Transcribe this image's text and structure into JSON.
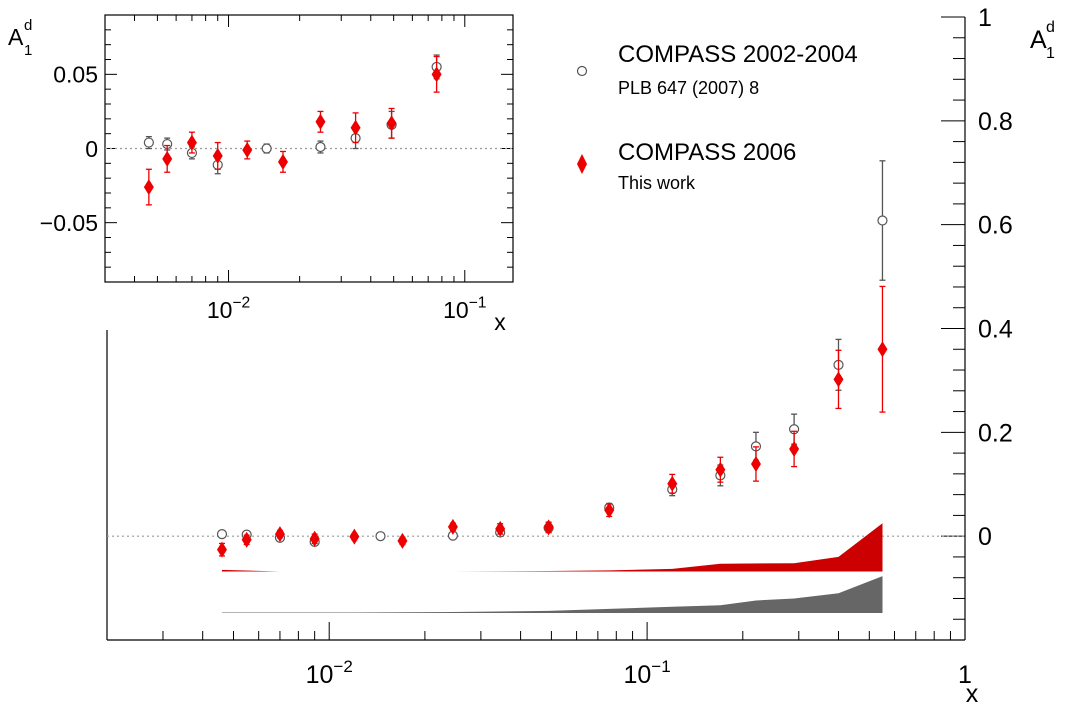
{
  "chart_data": [
    {
      "type": "scatter",
      "panel": "main",
      "x_scale": "log",
      "xlim": [
        0.002,
        1
      ],
      "ylim": [
        -0.2,
        1.0
      ],
      "grid": false,
      "xlabel": "x",
      "ylabel_main": "A",
      "ylabel_sub": "1",
      "ylabel_sup": "d",
      "x_ticks": [
        {
          "value": 0.01,
          "base": "10",
          "exp": "−2"
        },
        {
          "value": 0.1,
          "base": "10",
          "exp": "−1"
        },
        {
          "value": 1,
          "base": "",
          "exp": "1"
        }
      ],
      "y_ticks": [
        {
          "value": 0,
          "label": "0"
        },
        {
          "value": 0.2,
          "label": "0.2"
        },
        {
          "value": 0.4,
          "label": "0.4"
        },
        {
          "value": 0.6,
          "label": "0.6"
        },
        {
          "value": 0.8,
          "label": "0.8"
        },
        {
          "value": 1.0,
          "label": "1"
        }
      ],
      "reference_line_y": 0,
      "series": [
        {
          "name": "COMPASS 2002-2004",
          "color": "#555555",
          "marker": "open-circle",
          "points": [
            {
              "x": 0.0046,
              "y": 0.004,
              "err": 0.004
            },
            {
              "x": 0.0055,
              "y": 0.003,
              "err": 0.004
            },
            {
              "x": 0.007,
              "y": -0.003,
              "err": 0.004
            },
            {
              "x": 0.009,
              "y": -0.011,
              "err": 0.006
            },
            {
              "x": 0.0145,
              "y": 0.0,
              "err": 0.003
            },
            {
              "x": 0.0245,
              "y": 0.001,
              "err": 0.004
            },
            {
              "x": 0.0345,
              "y": 0.007,
              "err": 0.007
            },
            {
              "x": 0.049,
              "y": 0.016,
              "err": 0.009
            },
            {
              "x": 0.076,
              "y": 0.055,
              "err": 0.008
            },
            {
              "x": 0.12,
              "y": 0.09,
              "err": 0.012
            },
            {
              "x": 0.17,
              "y": 0.117,
              "err": 0.02
            },
            {
              "x": 0.22,
              "y": 0.173,
              "err": 0.027
            },
            {
              "x": 0.29,
              "y": 0.206,
              "err": 0.029
            },
            {
              "x": 0.4,
              "y": 0.33,
              "err": 0.049
            },
            {
              "x": 0.55,
              "y": 0.608,
              "err": 0.115
            }
          ]
        },
        {
          "name": "COMPASS 2006",
          "color": "#ee0000",
          "marker": "filled-diamond",
          "points": [
            {
              "x": 0.0046,
              "y": -0.026,
              "err": 0.012
            },
            {
              "x": 0.0055,
              "y": -0.007,
              "err": 0.009
            },
            {
              "x": 0.007,
              "y": 0.004,
              "err": 0.007
            },
            {
              "x": 0.009,
              "y": -0.005,
              "err": 0.009
            },
            {
              "x": 0.012,
              "y": -0.001,
              "err": 0.006
            },
            {
              "x": 0.017,
              "y": -0.009,
              "err": 0.007
            },
            {
              "x": 0.0245,
              "y": 0.018,
              "err": 0.007
            },
            {
              "x": 0.0345,
              "y": 0.014,
              "err": 0.01
            },
            {
              "x": 0.049,
              "y": 0.017,
              "err": 0.01
            },
            {
              "x": 0.076,
              "y": 0.05,
              "err": 0.012
            },
            {
              "x": 0.12,
              "y": 0.101,
              "err": 0.018
            },
            {
              "x": 0.17,
              "y": 0.128,
              "err": 0.024
            },
            {
              "x": 0.22,
              "y": 0.139,
              "err": 0.033
            },
            {
              "x": 0.29,
              "y": 0.168,
              "err": 0.034
            },
            {
              "x": 0.4,
              "y": 0.302,
              "err": 0.056
            },
            {
              "x": 0.55,
              "y": 0.36,
              "err": 0.121
            }
          ]
        }
      ],
      "systematic_bands": [
        {
          "series": "COMPASS 2006",
          "color": "#cc0000",
          "base": -0.068,
          "x": [
            0.0046,
            0.007,
            0.012,
            0.0245,
            0.049,
            0.076,
            0.12,
            0.17,
            0.29,
            0.4,
            0.55
          ],
          "top": [
            -0.065,
            -0.068,
            -0.068,
            -0.068,
            -0.067,
            -0.066,
            -0.063,
            -0.053,
            -0.052,
            -0.04,
            0.025
          ]
        },
        {
          "series": "COMPASS 2002-2004",
          "color": "#666666",
          "base": -0.148,
          "x": [
            0.0046,
            0.012,
            0.0245,
            0.049,
            0.076,
            0.12,
            0.17,
            0.22,
            0.29,
            0.4,
            0.55
          ],
          "top": [
            -0.147,
            -0.147,
            -0.146,
            -0.144,
            -0.14,
            -0.136,
            -0.133,
            -0.124,
            -0.12,
            -0.11,
            -0.077
          ]
        }
      ]
    },
    {
      "type": "scatter",
      "panel": "inset",
      "x_scale": "log",
      "xlim": [
        0.003,
        0.16
      ],
      "ylim": [
        -0.09,
        0.09
      ],
      "grid": false,
      "xlabel": "x",
      "ylabel_main": "A",
      "ylabel_sub": "1",
      "ylabel_sup": "d",
      "x_ticks": [
        {
          "value": 0.01,
          "base": "10",
          "exp": "−2"
        },
        {
          "value": 0.1,
          "base": "10",
          "exp": "−1"
        }
      ],
      "y_ticks": [
        {
          "value": 0.05,
          "label": "0.05"
        },
        {
          "value": 0,
          "label": "0"
        },
        {
          "value": -0.05,
          "label": "−0.05"
        }
      ],
      "reference_line_y": 0,
      "series_ref": [
        "COMPASS 2002-2004",
        "COMPASS 2006"
      ]
    }
  ],
  "legend": {
    "placement": "top-right",
    "entries": [
      {
        "title": "COMPASS 2002-2004",
        "subtitle": "PLB 647 (2007) 8"
      },
      {
        "title": "COMPASS 2006",
        "subtitle": "This work"
      }
    ]
  }
}
